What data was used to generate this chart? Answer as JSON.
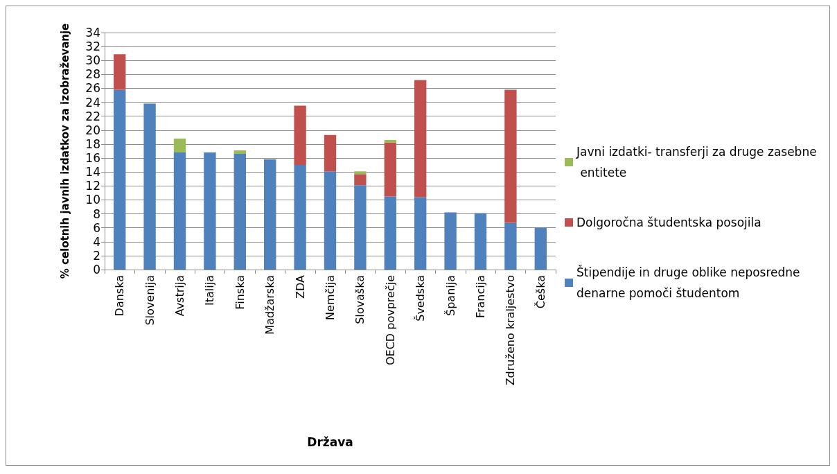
{
  "chart_data": {
    "type": "bar",
    "stacked": true,
    "xlabel": "Država",
    "ylabel": "% celotnih javnih izdatkov za izobraževanje",
    "categories": [
      "Danska",
      "Slovenija",
      "Avstrija",
      "Italija",
      "Finska",
      "Madžarska",
      "ZDA",
      "Nemčija",
      "Slovaška",
      "OECD povprečje",
      "Švedska",
      "Španija",
      "Francija",
      "Združeno kraljestvo",
      "Češka"
    ],
    "series": [
      {
        "name": "Štipendije in druge oblike neposredne denarne pomoči študentom",
        "color": "#4f81bd",
        "values": [
          25.8,
          23.8,
          16.8,
          16.8,
          16.6,
          15.8,
          15.0,
          14.1,
          12.1,
          10.5,
          10.4,
          8.2,
          8.1,
          6.7,
          6.0
        ]
      },
      {
        "name": "Dolgoročna študentska posojila",
        "color": "#c0504d",
        "values": [
          5.1,
          null,
          null,
          null,
          null,
          null,
          8.5,
          5.2,
          1.6,
          7.7,
          16.8,
          null,
          null,
          19.1,
          null
        ]
      },
      {
        "name": "Javni izdatki- transferji za druge zasebne entitete",
        "color": "#9bbb59",
        "values": [
          null,
          null,
          2.0,
          null,
          0.5,
          null,
          null,
          null,
          0.4,
          0.4,
          null,
          null,
          null,
          null,
          null
        ]
      }
    ],
    "ylim": [
      0,
      34
    ],
    "yticks": [
      0,
      2,
      4,
      6,
      8,
      10,
      12,
      14,
      16,
      18,
      20,
      22,
      24,
      26,
      28,
      30,
      32,
      34
    ],
    "grid": "y",
    "legend": "right"
  }
}
